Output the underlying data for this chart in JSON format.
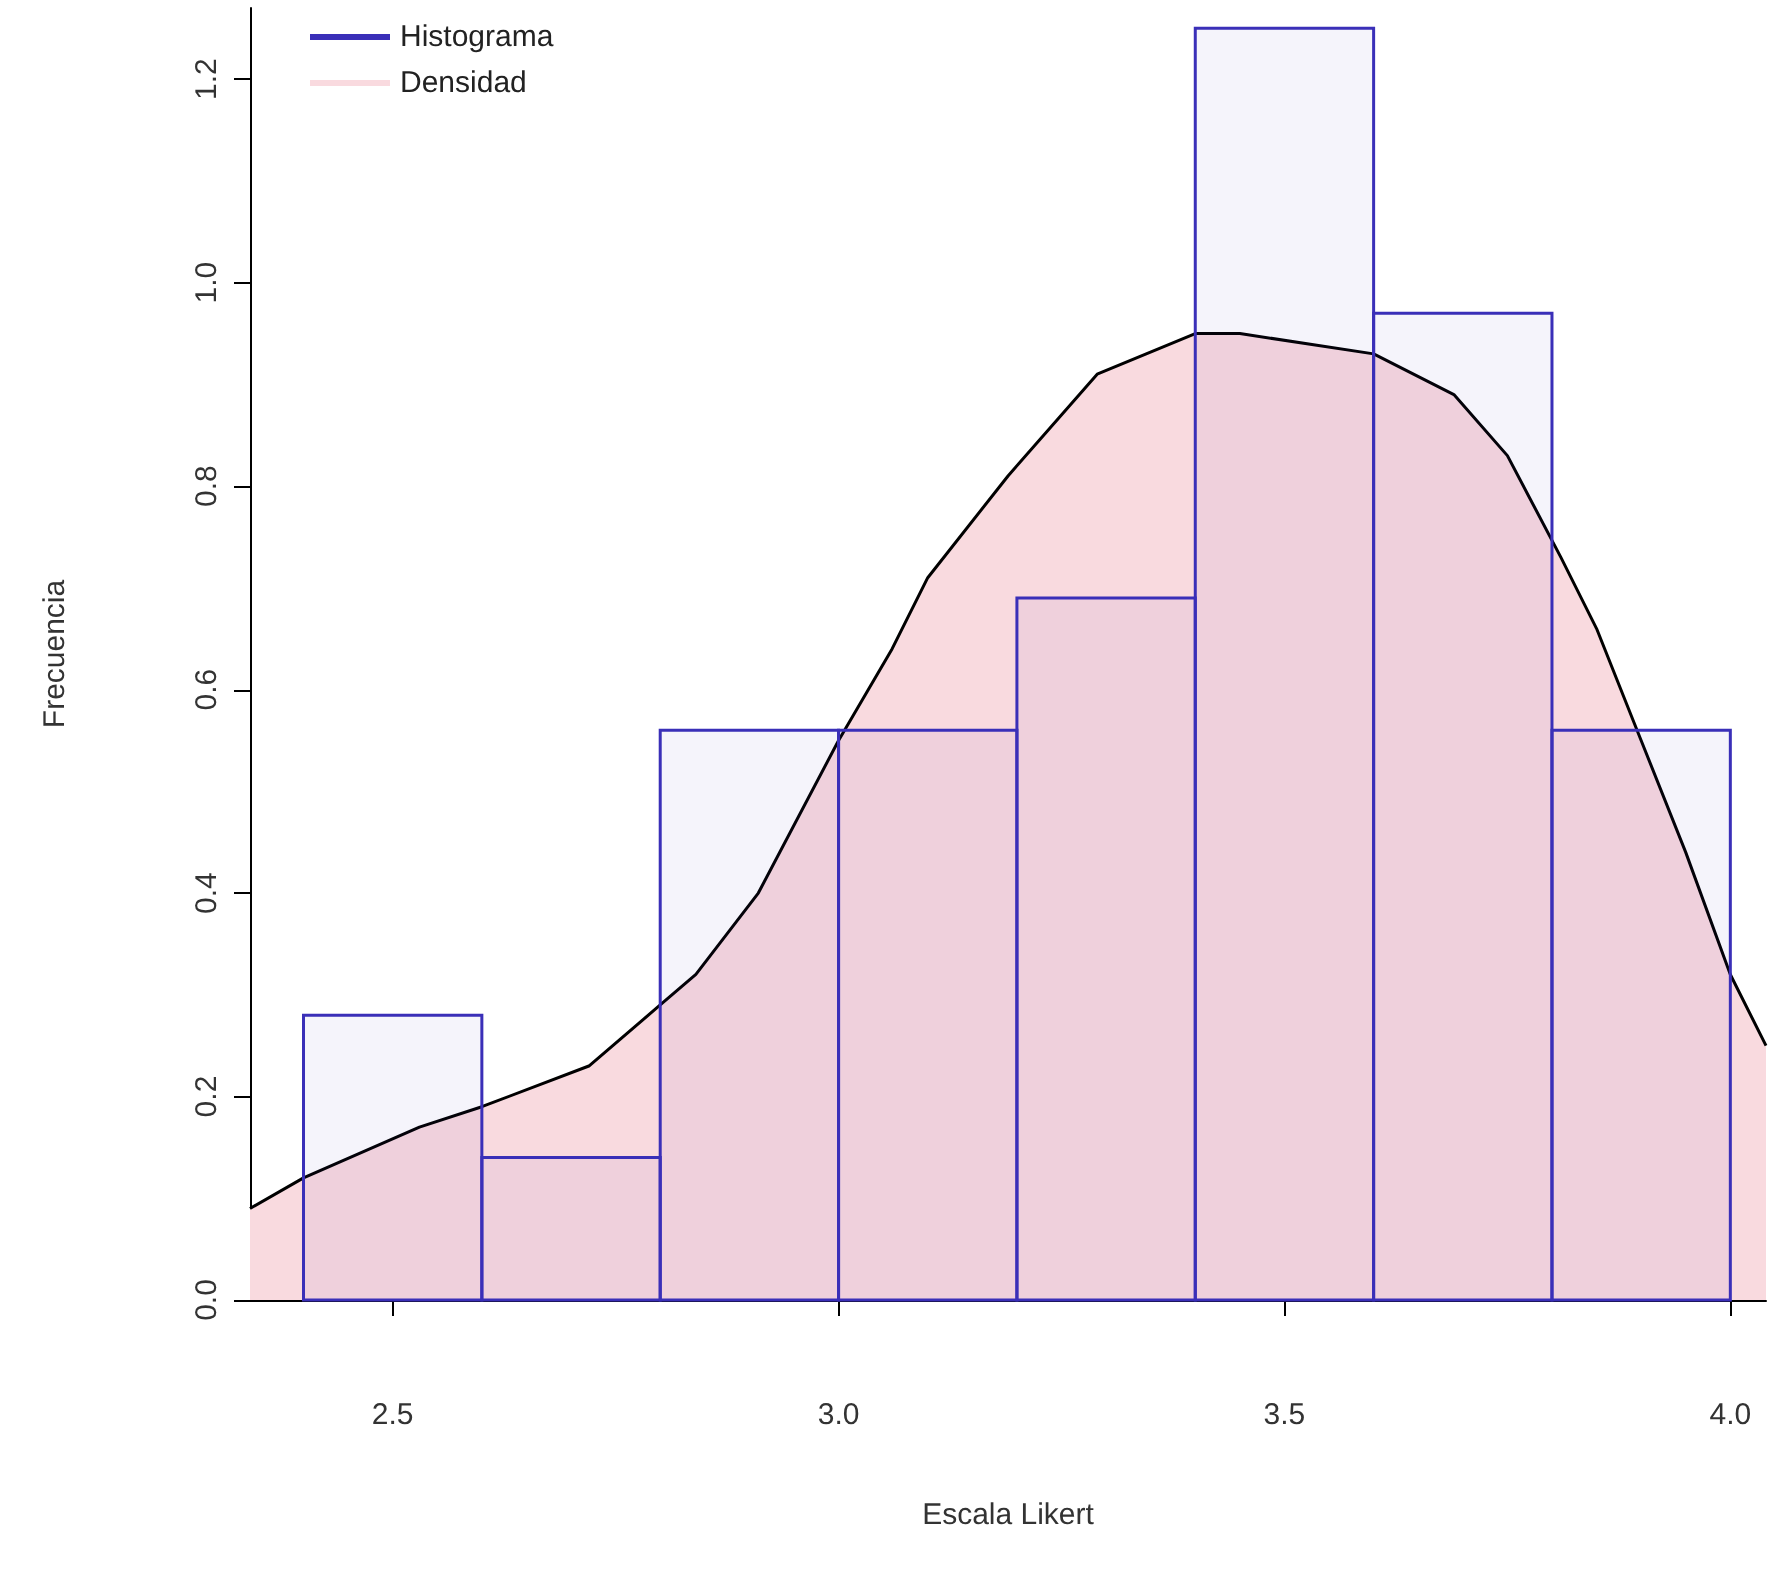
{
  "chart_data": {
    "type": "histogram",
    "xlabel": "Escala Likert",
    "ylabel": "Frecuencia",
    "bins": [
      2.4,
      2.6,
      2.8,
      3.0,
      3.2,
      3.4,
      3.6,
      3.8,
      4.0
    ],
    "series": [
      {
        "name": "Histograma",
        "color": "#3a2fb8",
        "values": [
          0.28,
          0.14,
          0.56,
          0.56,
          0.69,
          1.25,
          0.97,
          0.56
        ]
      },
      {
        "type": "area",
        "name": "Densidad",
        "color": "#f9dadf",
        "x": [
          2.34,
          2.4,
          2.53,
          2.6,
          2.72,
          2.8,
          2.84,
          2.91,
          3.0,
          3.06,
          3.1,
          3.19,
          3.29,
          3.4,
          3.45,
          3.6,
          3.69,
          3.75,
          3.81,
          3.85,
          3.9,
          3.95,
          4.0,
          4.04
        ],
        "values": [
          0.09,
          0.12,
          0.17,
          0.19,
          0.23,
          0.29,
          0.32,
          0.4,
          0.55,
          0.64,
          0.71,
          0.81,
          0.91,
          0.95,
          0.95,
          0.93,
          0.89,
          0.83,
          0.73,
          0.66,
          0.55,
          0.44,
          0.32,
          0.25
        ]
      }
    ],
    "xlim": [
      2.34,
      4.04
    ],
    "xticks": [
      2.5,
      {
        "value": 3,
        "label": "3.0"
      },
      3.5,
      {
        "value": 4,
        "label": "4.0"
      }
    ],
    "ylim": [
      0,
      1.27
    ],
    "yticks": [
      {
        "value": 0,
        "label": "0.0"
      },
      0.2,
      0.4,
      0.6,
      0.8,
      {
        "value": 1,
        "label": "1.0"
      },
      1.2
    ],
    "legend": "top left",
    "grid": false
  }
}
